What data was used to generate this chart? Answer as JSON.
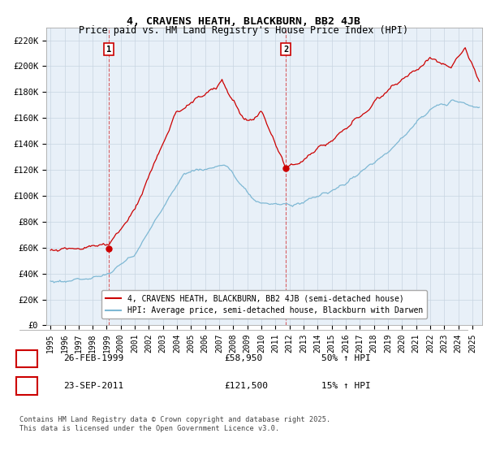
{
  "title": "4, CRAVENS HEATH, BLACKBURN, BB2 4JB",
  "subtitle": "Price paid vs. HM Land Registry's House Price Index (HPI)",
  "ylabel_ticks": [
    "£0",
    "£20K",
    "£40K",
    "£60K",
    "£80K",
    "£100K",
    "£120K",
    "£140K",
    "£160K",
    "£180K",
    "£200K",
    "£220K"
  ],
  "ytick_values": [
    0,
    20000,
    40000,
    60000,
    80000,
    100000,
    120000,
    140000,
    160000,
    180000,
    200000,
    220000
  ],
  "ylim": [
    0,
    230000
  ],
  "xlim_start": 1994.7,
  "xlim_end": 2025.7,
  "red_color": "#cc0000",
  "blue_color": "#7eb8d4",
  "bg_chart_color": "#e8f0f8",
  "marker1_x": 1999.15,
  "marker1_y": 58950,
  "marker2_x": 2011.73,
  "marker2_y": 121500,
  "legend_entry1": "4, CRAVENS HEATH, BLACKBURN, BB2 4JB (semi-detached house)",
  "legend_entry2": "HPI: Average price, semi-detached house, Blackburn with Darwen",
  "table_row1": [
    "1",
    "26-FEB-1999",
    "£58,950",
    "50% ↑ HPI"
  ],
  "table_row2": [
    "2",
    "23-SEP-2011",
    "£121,500",
    "15% ↑ HPI"
  ],
  "footer": "Contains HM Land Registry data © Crown copyright and database right 2025.\nThis data is licensed under the Open Government Licence v3.0.",
  "background_color": "#ffffff",
  "grid_color": "#c8d4e0"
}
